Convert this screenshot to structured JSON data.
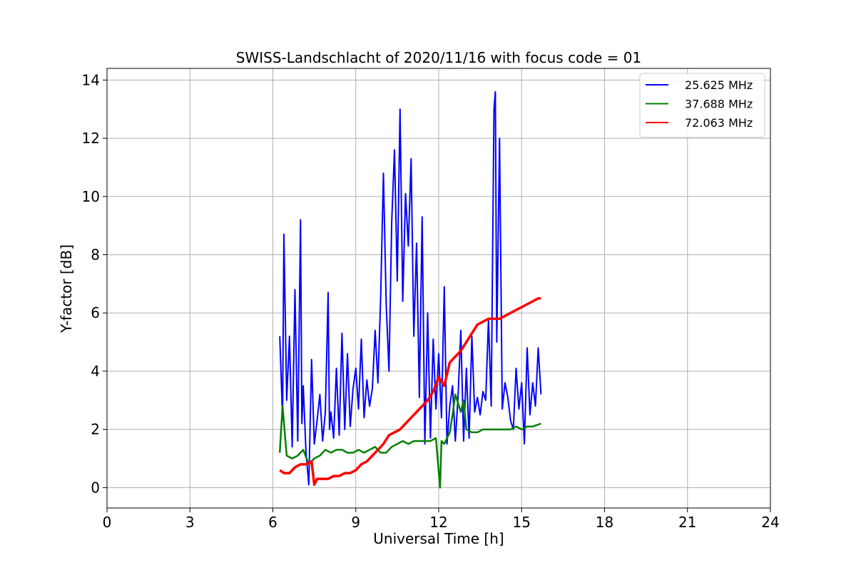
{
  "chart_data": {
    "type": "line",
    "title": "SWISS-Landschlacht of 2020/11/16 with focus code = 01",
    "xlabel": "Universal Time [h]",
    "ylabel": "Y-factor [dB]",
    "xlim": [
      0,
      24
    ],
    "ylim": [
      -0.7,
      14.4
    ],
    "xticks": [
      0,
      3,
      6,
      9,
      12,
      15,
      18,
      21,
      24
    ],
    "yticks": [
      0,
      2,
      4,
      6,
      8,
      10,
      12,
      14
    ],
    "grid": true,
    "legend_position": "top-right",
    "series": [
      {
        "name": "25.625 MHz",
        "color": "#0000ff",
        "x": [
          6.25,
          6.35,
          6.4,
          6.5,
          6.6,
          6.7,
          6.8,
          6.9,
          7.0,
          7.05,
          7.1,
          7.2,
          7.3,
          7.4,
          7.5,
          7.6,
          7.7,
          7.8,
          7.9,
          8.0,
          8.05,
          8.1,
          8.2,
          8.3,
          8.4,
          8.5,
          8.6,
          8.7,
          8.8,
          8.9,
          9.0,
          9.1,
          9.2,
          9.3,
          9.4,
          9.5,
          9.6,
          9.7,
          9.8,
          9.9,
          10.0,
          10.1,
          10.2,
          10.3,
          10.4,
          10.5,
          10.6,
          10.7,
          10.8,
          10.9,
          11.0,
          11.1,
          11.2,
          11.3,
          11.4,
          11.5,
          11.6,
          11.7,
          11.8,
          11.9,
          12.0,
          12.1,
          12.2,
          12.3,
          12.4,
          12.5,
          12.6,
          12.7,
          12.8,
          12.9,
          13.0,
          13.1,
          13.2,
          13.3,
          13.4,
          13.5,
          13.6,
          13.7,
          13.8,
          13.9,
          14.0,
          14.05,
          14.1,
          14.2,
          14.3,
          14.4,
          14.5,
          14.6,
          14.7,
          14.8,
          14.9,
          15.0,
          15.1,
          15.2,
          15.3,
          15.4,
          15.5,
          15.6,
          15.7
        ],
        "y": [
          5.2,
          2.4,
          8.7,
          3.0,
          5.2,
          1.4,
          6.8,
          1.6,
          9.2,
          2.2,
          3.5,
          1.2,
          0.1,
          4.4,
          1.5,
          2.3,
          3.2,
          1.6,
          2.6,
          6.7,
          2.0,
          2.6,
          1.7,
          4.1,
          1.8,
          5.3,
          2.0,
          4.6,
          2.1,
          3.4,
          4.1,
          2.7,
          5.1,
          2.4,
          3.7,
          2.8,
          3.4,
          5.4,
          3.6,
          6.5,
          10.8,
          6.3,
          4.0,
          9.1,
          11.6,
          7.1,
          13.0,
          6.4,
          10.1,
          8.3,
          11.3,
          5.2,
          8.4,
          3.1,
          9.3,
          1.5,
          6.0,
          1.7,
          5.1,
          2.7,
          4.6,
          2.4,
          6.9,
          1.5,
          2.8,
          3.5,
          1.6,
          3.1,
          5.4,
          1.6,
          4.1,
          1.7,
          5.2,
          2.6,
          3.1,
          2.5,
          3.3,
          3.0,
          5.8,
          2.8,
          13.0,
          13.6,
          5.0,
          12.0,
          2.7,
          3.6,
          3.1,
          2.3,
          2.0,
          4.1,
          2.7,
          3.6,
          1.5,
          4.8,
          2.5,
          3.6,
          2.8,
          4.8,
          3.2
        ]
      },
      {
        "name": "37.688 MHz",
        "color": "#008000",
        "x": [
          6.25,
          6.35,
          6.5,
          6.7,
          6.9,
          7.1,
          7.3,
          7.5,
          7.7,
          7.9,
          8.1,
          8.3,
          8.5,
          8.7,
          8.9,
          9.1,
          9.3,
          9.5,
          9.7,
          9.9,
          10.1,
          10.3,
          10.5,
          10.7,
          10.9,
          11.1,
          11.3,
          11.5,
          11.7,
          11.9,
          12.05,
          12.1,
          12.2,
          12.4,
          12.5,
          12.6,
          12.8,
          12.9,
          13.0,
          13.2,
          13.4,
          13.6,
          13.8,
          14.0,
          14.2,
          14.4,
          14.6,
          14.8,
          15.0,
          15.2,
          15.4,
          15.7
        ],
        "y": [
          1.2,
          2.8,
          1.1,
          1.0,
          1.1,
          1.3,
          0.8,
          1.0,
          1.1,
          1.3,
          1.2,
          1.3,
          1.3,
          1.2,
          1.2,
          1.3,
          1.2,
          1.3,
          1.4,
          1.2,
          1.2,
          1.4,
          1.5,
          1.6,
          1.5,
          1.6,
          1.6,
          1.6,
          1.6,
          1.7,
          0.0,
          1.6,
          1.5,
          1.9,
          2.5,
          3.2,
          2.6,
          3.0,
          2.0,
          1.9,
          1.9,
          2.0,
          2.0,
          2.0,
          2.0,
          2.0,
          2.0,
          2.1,
          2.0,
          2.1,
          2.1,
          2.2
        ]
      },
      {
        "name": "72.063 MHz",
        "color": "#ff0000",
        "x": [
          6.25,
          6.4,
          6.6,
          6.8,
          7.0,
          7.2,
          7.4,
          7.5,
          7.6,
          7.8,
          8.0,
          8.2,
          8.4,
          8.6,
          8.8,
          9.0,
          9.2,
          9.4,
          9.6,
          9.8,
          10.0,
          10.2,
          10.4,
          10.6,
          10.8,
          11.0,
          11.2,
          11.4,
          11.6,
          11.8,
          12.0,
          12.2,
          12.4,
          12.6,
          12.8,
          13.0,
          13.2,
          13.4,
          13.6,
          13.8,
          14.0,
          14.2,
          14.4,
          14.6,
          14.8,
          15.0,
          15.2,
          15.4,
          15.6,
          15.7
        ],
        "y": [
          0.6,
          0.5,
          0.5,
          0.7,
          0.8,
          0.8,
          0.9,
          0.1,
          0.3,
          0.3,
          0.3,
          0.4,
          0.4,
          0.5,
          0.5,
          0.6,
          0.8,
          0.9,
          1.1,
          1.3,
          1.5,
          1.8,
          1.9,
          2.0,
          2.2,
          2.4,
          2.6,
          2.8,
          3.0,
          3.3,
          3.8,
          3.5,
          4.3,
          4.5,
          4.7,
          5.0,
          5.3,
          5.6,
          5.7,
          5.8,
          5.8,
          5.8,
          5.9,
          6.0,
          6.1,
          6.2,
          6.3,
          6.4,
          6.5,
          6.5
        ]
      }
    ]
  }
}
